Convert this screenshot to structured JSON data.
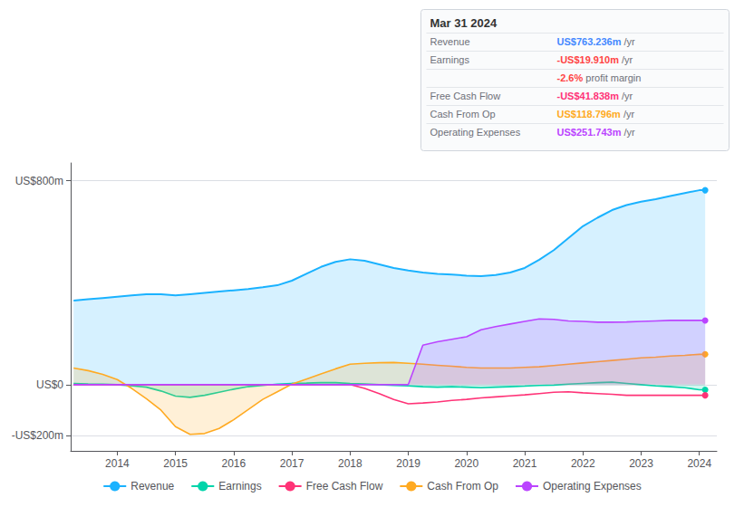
{
  "chart_data": {
    "type": "line",
    "x": [
      2013.25,
      2013.5,
      2013.75,
      2014.0,
      2014.25,
      2014.5,
      2014.75,
      2015.0,
      2015.25,
      2015.5,
      2015.75,
      2016.0,
      2016.25,
      2016.5,
      2016.75,
      2017.0,
      2017.25,
      2017.5,
      2017.75,
      2018.0,
      2018.25,
      2018.5,
      2018.75,
      2019.0,
      2019.25,
      2019.5,
      2019.75,
      2020.0,
      2020.25,
      2020.5,
      2020.75,
      2021.0,
      2021.25,
      2021.5,
      2021.75,
      2022.0,
      2022.25,
      2022.5,
      2022.75,
      2023.0,
      2023.25,
      2023.5,
      2023.75,
      2024.0,
      2024.1
    ],
    "series": [
      {
        "name": "Revenue",
        "color": "#1ab2ff",
        "type": "area",
        "values": [
          330,
          335,
          340,
          345,
          350,
          355,
          355,
          350,
          355,
          360,
          365,
          370,
          375,
          382,
          390,
          408,
          435,
          462,
          482,
          492,
          486,
          472,
          458,
          448,
          440,
          435,
          432,
          428,
          426,
          430,
          440,
          458,
          490,
          528,
          575,
          622,
          655,
          685,
          705,
          718,
          728,
          740,
          752,
          763,
          763
        ]
      },
      {
        "name": "Earnings",
        "color": "#00d4aa",
        "type": "area",
        "values": [
          5,
          3,
          2,
          0,
          -5,
          -10,
          -25,
          -45,
          -50,
          -42,
          -30,
          -18,
          -8,
          -3,
          2,
          5,
          6,
          8,
          8,
          5,
          3,
          0,
          -3,
          -5,
          -8,
          -10,
          -8,
          -10,
          -12,
          -10,
          -8,
          -6,
          -3,
          -2,
          2,
          5,
          8,
          10,
          5,
          0,
          -5,
          -8,
          -12,
          -20,
          -20
        ]
      },
      {
        "name": "Free Cash Flow",
        "color": "#ff3377",
        "type": "line",
        "values": [
          0,
          0,
          0,
          0,
          0,
          0,
          0,
          0,
          0,
          0,
          0,
          0,
          0,
          0,
          0,
          0,
          0,
          0,
          0,
          0,
          -15,
          -35,
          -58,
          -75,
          -72,
          -68,
          -62,
          -58,
          -52,
          -48,
          -44,
          -40,
          -35,
          -30,
          -28,
          -32,
          -35,
          -38,
          -42,
          -42,
          -42,
          -42,
          -42,
          -42,
          -42
        ]
      },
      {
        "name": "Cash From Op",
        "color": "#ffaa22",
        "type": "area",
        "values": [
          65,
          55,
          40,
          20,
          -15,
          -55,
          -100,
          -165,
          -195,
          -192,
          -172,
          -138,
          -98,
          -58,
          -28,
          2,
          22,
          42,
          62,
          80,
          84,
          86,
          87,
          84,
          80,
          76,
          72,
          68,
          65,
          65,
          65,
          68,
          70,
          75,
          80,
          85,
          90,
          95,
          100,
          105,
          108,
          112,
          115,
          119,
          119
        ]
      },
      {
        "name": "Operating Expenses",
        "color": "#bb44ff",
        "type": "area",
        "values": [
          0,
          0,
          0,
          0,
          0,
          0,
          0,
          0,
          0,
          0,
          0,
          0,
          0,
          0,
          0,
          0,
          0,
          0,
          0,
          0,
          0,
          0,
          0,
          0,
          155,
          168,
          178,
          188,
          215,
          228,
          238,
          248,
          258,
          256,
          250,
          248,
          245,
          245,
          246,
          248,
          250,
          252,
          252,
          252,
          252
        ]
      }
    ],
    "xlim": [
      2013.2,
      2024.3
    ],
    "xticks": [
      2014,
      2015,
      2016,
      2017,
      2018,
      2019,
      2020,
      2021,
      2022,
      2023,
      2024
    ],
    "ylim": [
      -260,
      870
    ],
    "yticks": [
      {
        "value": -200,
        "label": "-US$200m"
      },
      {
        "value": 0,
        "label": "US$0"
      },
      {
        "value": 800,
        "label": "US$800m"
      }
    ],
    "grid": true,
    "legend": "bottom",
    "marker": "circle",
    "annotations": {
      "title": "Mar 31 2024",
      "rows": [
        {
          "label": "Revenue",
          "value": "US$763.236m",
          "color": "#4488ff",
          "suffix": " /yr"
        },
        {
          "label": "Earnings",
          "value": "-US$19.910m",
          "color": "#ff4444",
          "suffix": " /yr"
        },
        {
          "value": "-2.6%",
          "color": "#ff4444",
          "suffix": " profit margin"
        },
        {
          "label": "Free Cash Flow",
          "value": "-US$41.838m",
          "color": "#ff3377",
          "suffix": " /yr"
        },
        {
          "label": "Cash From Op",
          "value": "US$118.796m",
          "color": "#ffaa22",
          "suffix": " /yr"
        },
        {
          "label": "Operating Expenses",
          "value": "US$251.743m",
          "color": "#bb44ff",
          "suffix": " /yr"
        }
      ]
    }
  }
}
